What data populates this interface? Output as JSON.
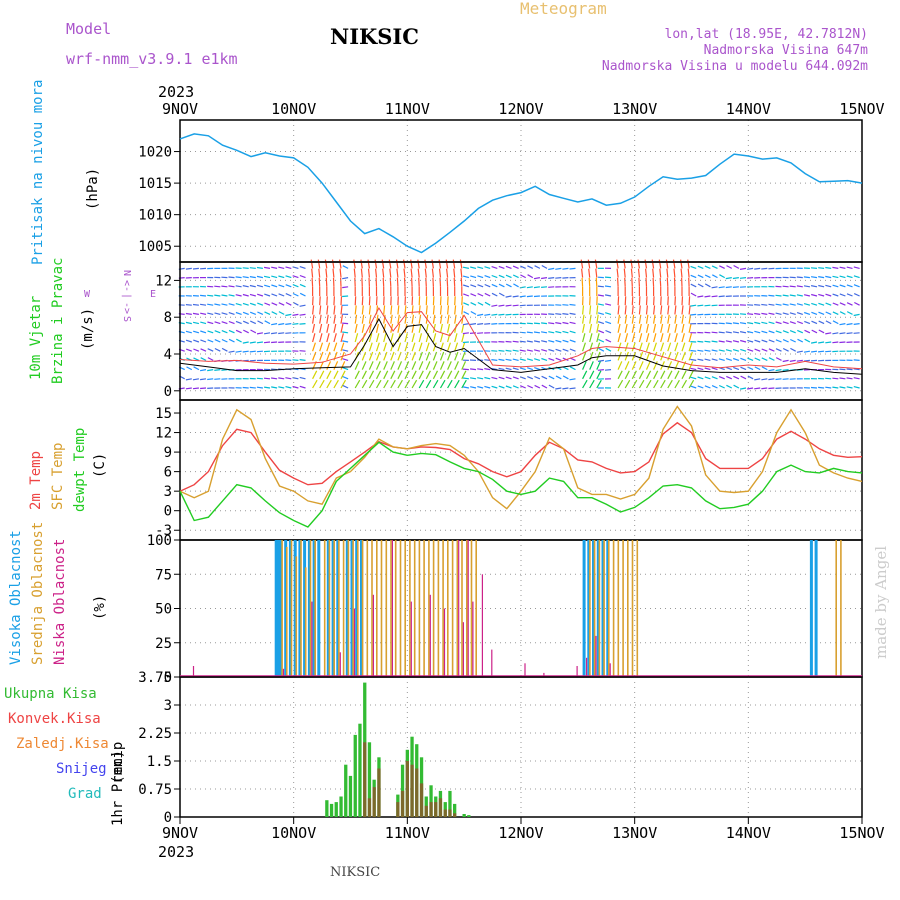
{
  "header": {
    "model_label": "Model",
    "model_name": "wrf-nmm_v3.9.1  e1km",
    "station": "NIKSIC",
    "meteogram": "Meteogram",
    "lonlat": "lon,lat (18.95E, 42.7812N)",
    "elevation": "Nadmorska Visina 647m",
    "model_elevation": "Nadmorska Visina u modelu 644.092m",
    "year_top": "2023",
    "year_bottom": "2023",
    "footer_station": "NIKSIC",
    "watermark": "made by Angel"
  },
  "colors": {
    "pressure": "#1aa0e6",
    "t2m": "#ee4444",
    "sfc": "#d8a030",
    "dew": "#22cc22",
    "high_cloud": "#1aa0e6",
    "mid_cloud": "#d8a030",
    "low_cloud": "#cc2288",
    "total_precip": "#33bb33",
    "conv_precip": "#ee4444",
    "mean_wind": "#000000",
    "gust": "#ee4444"
  },
  "chart_data": [
    {
      "type": "line",
      "panel": "pressure",
      "ylabel": [
        "Pritisak na nivou mora",
        "(hPa)"
      ],
      "x_ticks": [
        "9NOV",
        "10NOV",
        "11NOV",
        "12NOV",
        "13NOV",
        "14NOV",
        "15NOV"
      ],
      "yticks": [
        1005,
        1010,
        1015,
        1020
      ],
      "ylim": [
        1002.5,
        1025
      ],
      "x": [
        0,
        3,
        6,
        9,
        12,
        15,
        18,
        21,
        24,
        27,
        30,
        33,
        36,
        39,
        42,
        45,
        48,
        51,
        54,
        57,
        60,
        63,
        66,
        69,
        72,
        75,
        78,
        81,
        84,
        87,
        90,
        93,
        96,
        99,
        102,
        105,
        108,
        111,
        114,
        117,
        120,
        123,
        126,
        129,
        132,
        135,
        138,
        141,
        144
      ],
      "series": [
        {
          "values": [
            1022.0,
            1022.8,
            1022.5,
            1021.0,
            1020.2,
            1019.2,
            1019.8,
            1019.3,
            1019.0,
            1017.5,
            1015.0,
            1012.0,
            1009.0,
            1007.0,
            1007.8,
            1006.5,
            1005.0,
            1004.0,
            1005.5,
            1007.2,
            1009.0,
            1011.0,
            1012.3,
            1013.0,
            1013.5,
            1014.5,
            1013.2,
            1012.6,
            1012.0,
            1012.5,
            1011.5,
            1011.8,
            1012.8,
            1014.5,
            1016.0,
            1015.6,
            1015.8,
            1016.2,
            1018.0,
            1019.6,
            1019.3,
            1018.8,
            1019.0,
            1018.2,
            1016.5,
            1015.2,
            1015.3,
            1015.4,
            1015.0
          ]
        }
      ]
    },
    {
      "type": "line",
      "panel": "wind",
      "ylabel": [
        "10m Vjetar",
        "Brzina i Pravac",
        "(m/s)"
      ],
      "compass": [
        "N",
        "<-",
        "|",
        "->",
        "S",
        "W",
        "E"
      ],
      "yticks": [
        0,
        4,
        8,
        12
      ],
      "ylim": [
        -1,
        14
      ],
      "note": "wind direction shown by arrows; speed in m/s",
      "x": [
        0,
        6,
        12,
        18,
        24,
        30,
        36,
        39,
        42,
        45,
        48,
        51,
        54,
        57,
        60,
        66,
        72,
        78,
        84,
        87,
        90,
        96,
        102,
        108,
        114,
        120,
        126,
        132,
        138,
        144
      ],
      "series": [
        {
          "values": [
            3.0,
            2.6,
            2.2,
            2.2,
            2.4,
            2.5,
            2.6,
            5.0,
            7.8,
            4.8,
            7.0,
            7.2,
            4.8,
            4.2,
            4.6,
            2.3,
            2.0,
            2.4,
            2.8,
            3.6,
            3.8,
            3.8,
            2.7,
            2.2,
            2.0,
            2.0,
            2.0,
            2.4,
            2.0,
            1.8
          ]
        },
        {
          "values": [
            3.4,
            3.2,
            3.3,
            3.0,
            2.9,
            3.1,
            4.0,
            6.0,
            9.0,
            6.5,
            8.5,
            8.6,
            6.5,
            6.0,
            8.2,
            2.8,
            2.6,
            2.8,
            3.8,
            4.6,
            4.8,
            4.6,
            3.7,
            2.8,
            2.5,
            2.8,
            2.6,
            3.2,
            2.6,
            2.4
          ]
        }
      ]
    },
    {
      "type": "line",
      "panel": "temperature",
      "ylabel": [
        "2m Temp",
        "SFC Temp",
        "dewpt Temp",
        "(C)"
      ],
      "yticks": [
        -3,
        0,
        3,
        6,
        9,
        12,
        15
      ],
      "ylim": [
        -4.5,
        17
      ],
      "x": [
        0,
        3,
        6,
        9,
        12,
        15,
        18,
        21,
        24,
        27,
        30,
        33,
        36,
        39,
        42,
        45,
        48,
        51,
        54,
        57,
        60,
        63,
        66,
        69,
        72,
        75,
        78,
        81,
        84,
        87,
        90,
        93,
        96,
        99,
        102,
        105,
        108,
        111,
        114,
        117,
        120,
        123,
        126,
        129,
        132,
        135,
        138,
        141,
        144
      ],
      "series": [
        {
          "name": "2m Temp",
          "values": [
            3,
            4,
            6,
            10,
            12.5,
            12,
            9,
            6.2,
            5.0,
            4.0,
            4.2,
            6,
            7.5,
            9,
            10.6,
            9.8,
            9.5,
            9.8,
            9.7,
            9.4,
            8.0,
            7.2,
            6.0,
            5.2,
            6.0,
            8.5,
            10.5,
            9.5,
            7.8,
            7.5,
            6.5,
            5.8,
            6.0,
            7.5,
            11.8,
            13.5,
            12.0,
            8.0,
            6.5,
            6.5,
            6.5,
            8.0,
            11.0,
            12.2,
            11.0,
            9.5,
            8.5,
            8.2,
            8.3
          ]
        },
        {
          "name": "SFC Temp",
          "values": [
            3,
            2,
            3,
            11,
            15.5,
            14,
            8,
            3.8,
            3.0,
            1.5,
            1.0,
            5,
            6,
            8.2,
            11.0,
            9.8,
            9.5,
            10,
            10.3,
            10,
            8.5,
            6,
            2.0,
            0.3,
            3.0,
            6,
            11.2,
            9.5,
            3.5,
            2.5,
            2.5,
            1.8,
            2.5,
            5,
            12.5,
            16.0,
            13.0,
            5.5,
            3.0,
            2.8,
            3.0,
            6.0,
            12.0,
            15.5,
            12.0,
            7,
            5.8,
            5.0,
            4.5
          ]
        },
        {
          "name": "dewpt Temp",
          "values": [
            3,
            -1.5,
            -1.0,
            1.5,
            4.0,
            3.5,
            1.5,
            -0.3,
            -1.5,
            -2.5,
            0,
            4.5,
            6.5,
            8.5,
            10.5,
            9.0,
            8.5,
            8.8,
            8.6,
            7.5,
            6.5,
            6.0,
            4.8,
            3.0,
            2.5,
            3.0,
            5.0,
            4.5,
            2.0,
            2.0,
            1.0,
            -0.2,
            0.5,
            2.0,
            3.8,
            4.0,
            3.5,
            1.5,
            0.3,
            0.5,
            1.0,
            3.0,
            6.0,
            7.0,
            6.0,
            5.8,
            6.5,
            6.0,
            5.8
          ]
        }
      ]
    },
    {
      "type": "bar",
      "panel": "cloud",
      "ylabel": [
        "Visoka Oblacnost",
        "Srednja Oblacnost",
        "Niska Oblacnost",
        "(%)"
      ],
      "yticks": [
        0,
        25,
        50,
        75,
        100
      ],
      "ylim": [
        0,
        100
      ],
      "series": [
        {
          "name": "Visoka Oblacnost",
          "x": [
            20,
            20.5,
            21,
            22,
            23,
            24,
            25,
            26,
            27,
            28,
            29,
            31,
            32,
            33,
            35,
            36,
            37,
            38,
            85,
            86,
            87,
            88,
            89,
            90,
            133,
            134
          ],
          "values": [
            100,
            100,
            100,
            100,
            100,
            100,
            100,
            100,
            100,
            100,
            100,
            100,
            100,
            100,
            100,
            100,
            100,
            100,
            100,
            100,
            100,
            100,
            100,
            100,
            100,
            100
          ]
        },
        {
          "name": "Srednja Oblacnost",
          "x": [
            21,
            22,
            23,
            24,
            25,
            26,
            27,
            28,
            30,
            31,
            32,
            33,
            34,
            35,
            36,
            37,
            38,
            39,
            40,
            41,
            42,
            43,
            44,
            45,
            46,
            47,
            48,
            49,
            50,
            51,
            52,
            53,
            54,
            55,
            56,
            57,
            58,
            59,
            60,
            61,
            62,
            86,
            87,
            88,
            89,
            90,
            91,
            92,
            93,
            94,
            95,
            96,
            138,
            139
          ],
          "values": [
            100,
            95,
            100,
            88,
            100,
            80,
            100,
            100,
            100,
            100,
            100,
            100,
            100,
            100,
            100,
            100,
            100,
            100,
            100,
            100,
            100,
            100,
            100,
            100,
            100,
            100,
            100,
            100,
            100,
            100,
            100,
            100,
            100,
            100,
            100,
            100,
            100,
            100,
            100,
            100,
            100,
            100,
            100,
            100,
            100,
            100,
            100,
            100,
            100,
            100,
            100,
            100,
            100,
            100
          ]
        },
        {
          "name": "Niska Oblacnost",
          "x": [
            2,
            21,
            27,
            33,
            36,
            40,
            44,
            48,
            52,
            55,
            58,
            59,
            60,
            61,
            63,
            65,
            72,
            76,
            83,
            85,
            87,
            90
          ],
          "values": [
            8,
            6,
            55,
            18,
            50,
            60,
            100,
            55,
            60,
            50,
            100,
            40,
            100,
            55,
            75,
            20,
            10,
            3,
            8,
            14,
            30,
            10
          ]
        }
      ]
    },
    {
      "type": "bar",
      "panel": "precip",
      "ylabel": [
        "1hr Precip",
        "(mm)"
      ],
      "legend": [
        "Ukupna Kisa",
        "Konvek.Kisa",
        "Zaledj.Kisa",
        "Snijeg",
        "Grad"
      ],
      "legend_colors": [
        "#33bb33",
        "#ee4444",
        "#ee8833",
        "#4444ee",
        "#22bbbb"
      ],
      "yticks": [
        0,
        0.75,
        1.5,
        2.25,
        3,
        3.75
      ],
      "ylim": [
        0,
        3.75
      ],
      "x": [
        31,
        32,
        33,
        34,
        35,
        36,
        37,
        38,
        39,
        40,
        41,
        42,
        43,
        44,
        45,
        46,
        47,
        48,
        49,
        50,
        51,
        52,
        53,
        54,
        55,
        56,
        57,
        58,
        59,
        60,
        61
      ],
      "series": [
        {
          "name": "Ukupna Kisa",
          "values": [
            0.45,
            0.35,
            0.4,
            0.55,
            1.4,
            1.1,
            2.2,
            2.5,
            3.6,
            2.0,
            1.0,
            1.6,
            0,
            0,
            0,
            0.6,
            1.4,
            1.8,
            2.15,
            1.95,
            1.6,
            0.55,
            0.85,
            0.55,
            0.7,
            0.4,
            0.7,
            0.35,
            0,
            0.08,
            0.05
          ]
        },
        {
          "name": "Konvek.Kisa",
          "values": [
            0,
            0,
            0,
            0,
            0,
            0,
            0,
            0,
            2.0,
            0.5,
            0.8,
            1.3,
            0,
            0,
            0,
            0.4,
            0.7,
            1.5,
            1.4,
            1.3,
            0.9,
            0.3,
            0.4,
            0.4,
            0.5,
            0.2,
            0.2,
            0.1,
            0,
            0,
            0
          ]
        }
      ]
    }
  ]
}
